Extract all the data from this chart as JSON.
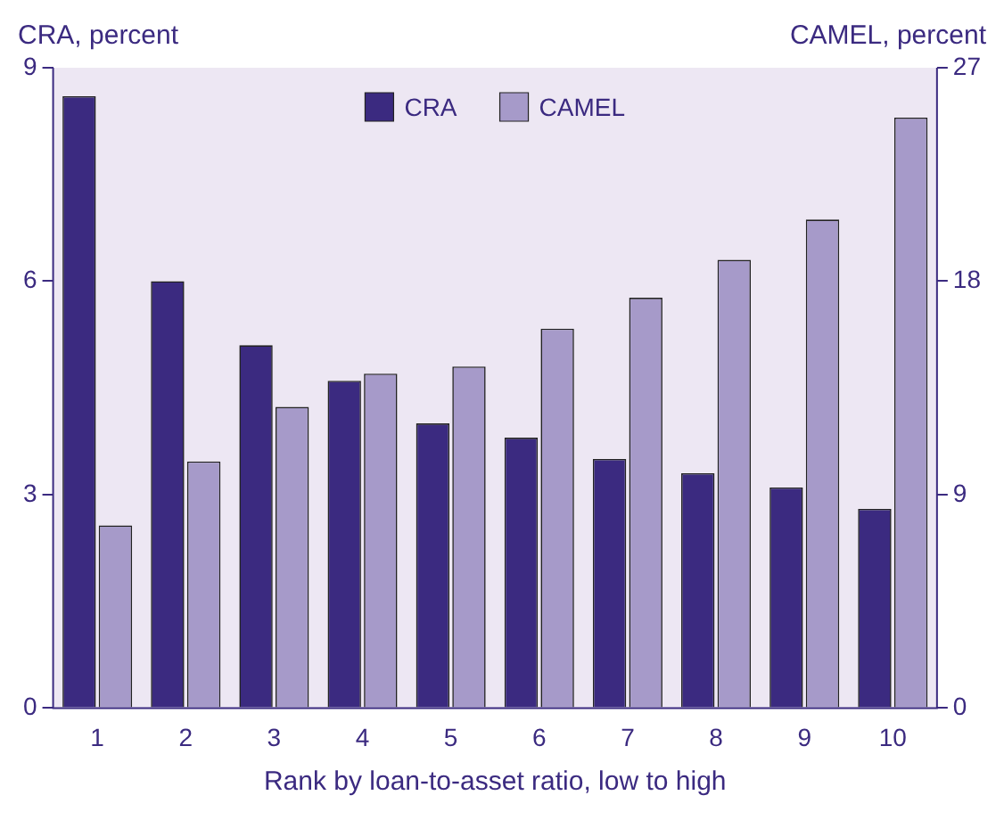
{
  "chart_data": {
    "type": "bar",
    "ylabel": "CRA, percent",
    "y2label": "CAMEL, percent",
    "xlabel": "Rank by loan-to-asset ratio, low to high",
    "categories": [
      "1",
      "2",
      "3",
      "4",
      "5",
      "6",
      "7",
      "8",
      "9",
      "10"
    ],
    "series": [
      {
        "name": "CRA",
        "color": "#3b2a80",
        "values": [
          8.6,
          6.0,
          5.1,
          4.6,
          4.0,
          3.8,
          3.5,
          3.3,
          3.1,
          2.8
        ]
      },
      {
        "name": "CAMEL",
        "color": "#a69ac9",
        "axis": "y2",
        "values": [
          7.7,
          10.4,
          12.7,
          14.1,
          14.4,
          16.0,
          17.3,
          18.9,
          20.6,
          24.9
        ]
      }
    ],
    "ylim": [
      0,
      9
    ],
    "yticks": [
      0,
      3,
      6,
      9
    ],
    "y2lim": [
      0,
      27
    ],
    "y2ticks": [
      0,
      9,
      18,
      27
    ],
    "grid": false,
    "legend": "top"
  }
}
